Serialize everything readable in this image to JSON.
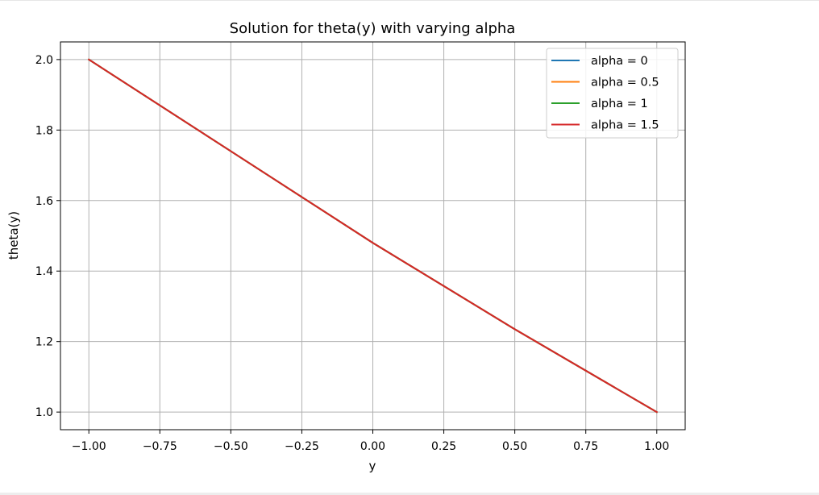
{
  "chart_data": {
    "type": "line",
    "title": "Solution for theta(y) with varying alpha",
    "xlabel": "y",
    "ylabel": "theta(y)",
    "xlim": [
      -1.1,
      1.1
    ],
    "ylim": [
      0.95,
      2.05
    ],
    "xticks": [
      -1.0,
      -0.75,
      -0.5,
      -0.25,
      0.0,
      0.25,
      0.5,
      0.75,
      1.0
    ],
    "xtick_labels": [
      "−1.00",
      "−0.75",
      "−0.50",
      "−0.25",
      "0.00",
      "0.25",
      "0.50",
      "0.75",
      "1.00"
    ],
    "yticks": [
      1.0,
      1.2,
      1.4,
      1.6,
      1.8,
      2.0
    ],
    "ytick_labels": [
      "1.0",
      "1.2",
      "1.4",
      "1.6",
      "1.8",
      "2.0"
    ],
    "grid": true,
    "legend_position": "top-right",
    "series": [
      {
        "name": "alpha = 0",
        "color": "#1f77b4",
        "x": [
          -1.0,
          -0.5,
          0.0,
          0.5,
          1.0
        ],
        "y": [
          2.0,
          1.74,
          1.48,
          1.235,
          1.0
        ]
      },
      {
        "name": "alpha = 0.5",
        "color": "#ff7f0e",
        "x": [
          -1.0,
          -0.5,
          0.0,
          0.5,
          1.0
        ],
        "y": [
          2.0,
          1.74,
          1.48,
          1.235,
          1.0
        ]
      },
      {
        "name": "alpha = 1",
        "color": "#2ca02c",
        "x": [
          -1.0,
          -0.5,
          0.0,
          0.5,
          1.0
        ],
        "y": [
          2.0,
          1.74,
          1.48,
          1.235,
          1.0
        ]
      },
      {
        "name": "alpha = 1.5",
        "color": "#d62728",
        "x": [
          -1.0,
          -0.5,
          0.0,
          0.5,
          1.0
        ],
        "y": [
          2.0,
          1.74,
          1.48,
          1.235,
          1.0
        ]
      }
    ]
  }
}
